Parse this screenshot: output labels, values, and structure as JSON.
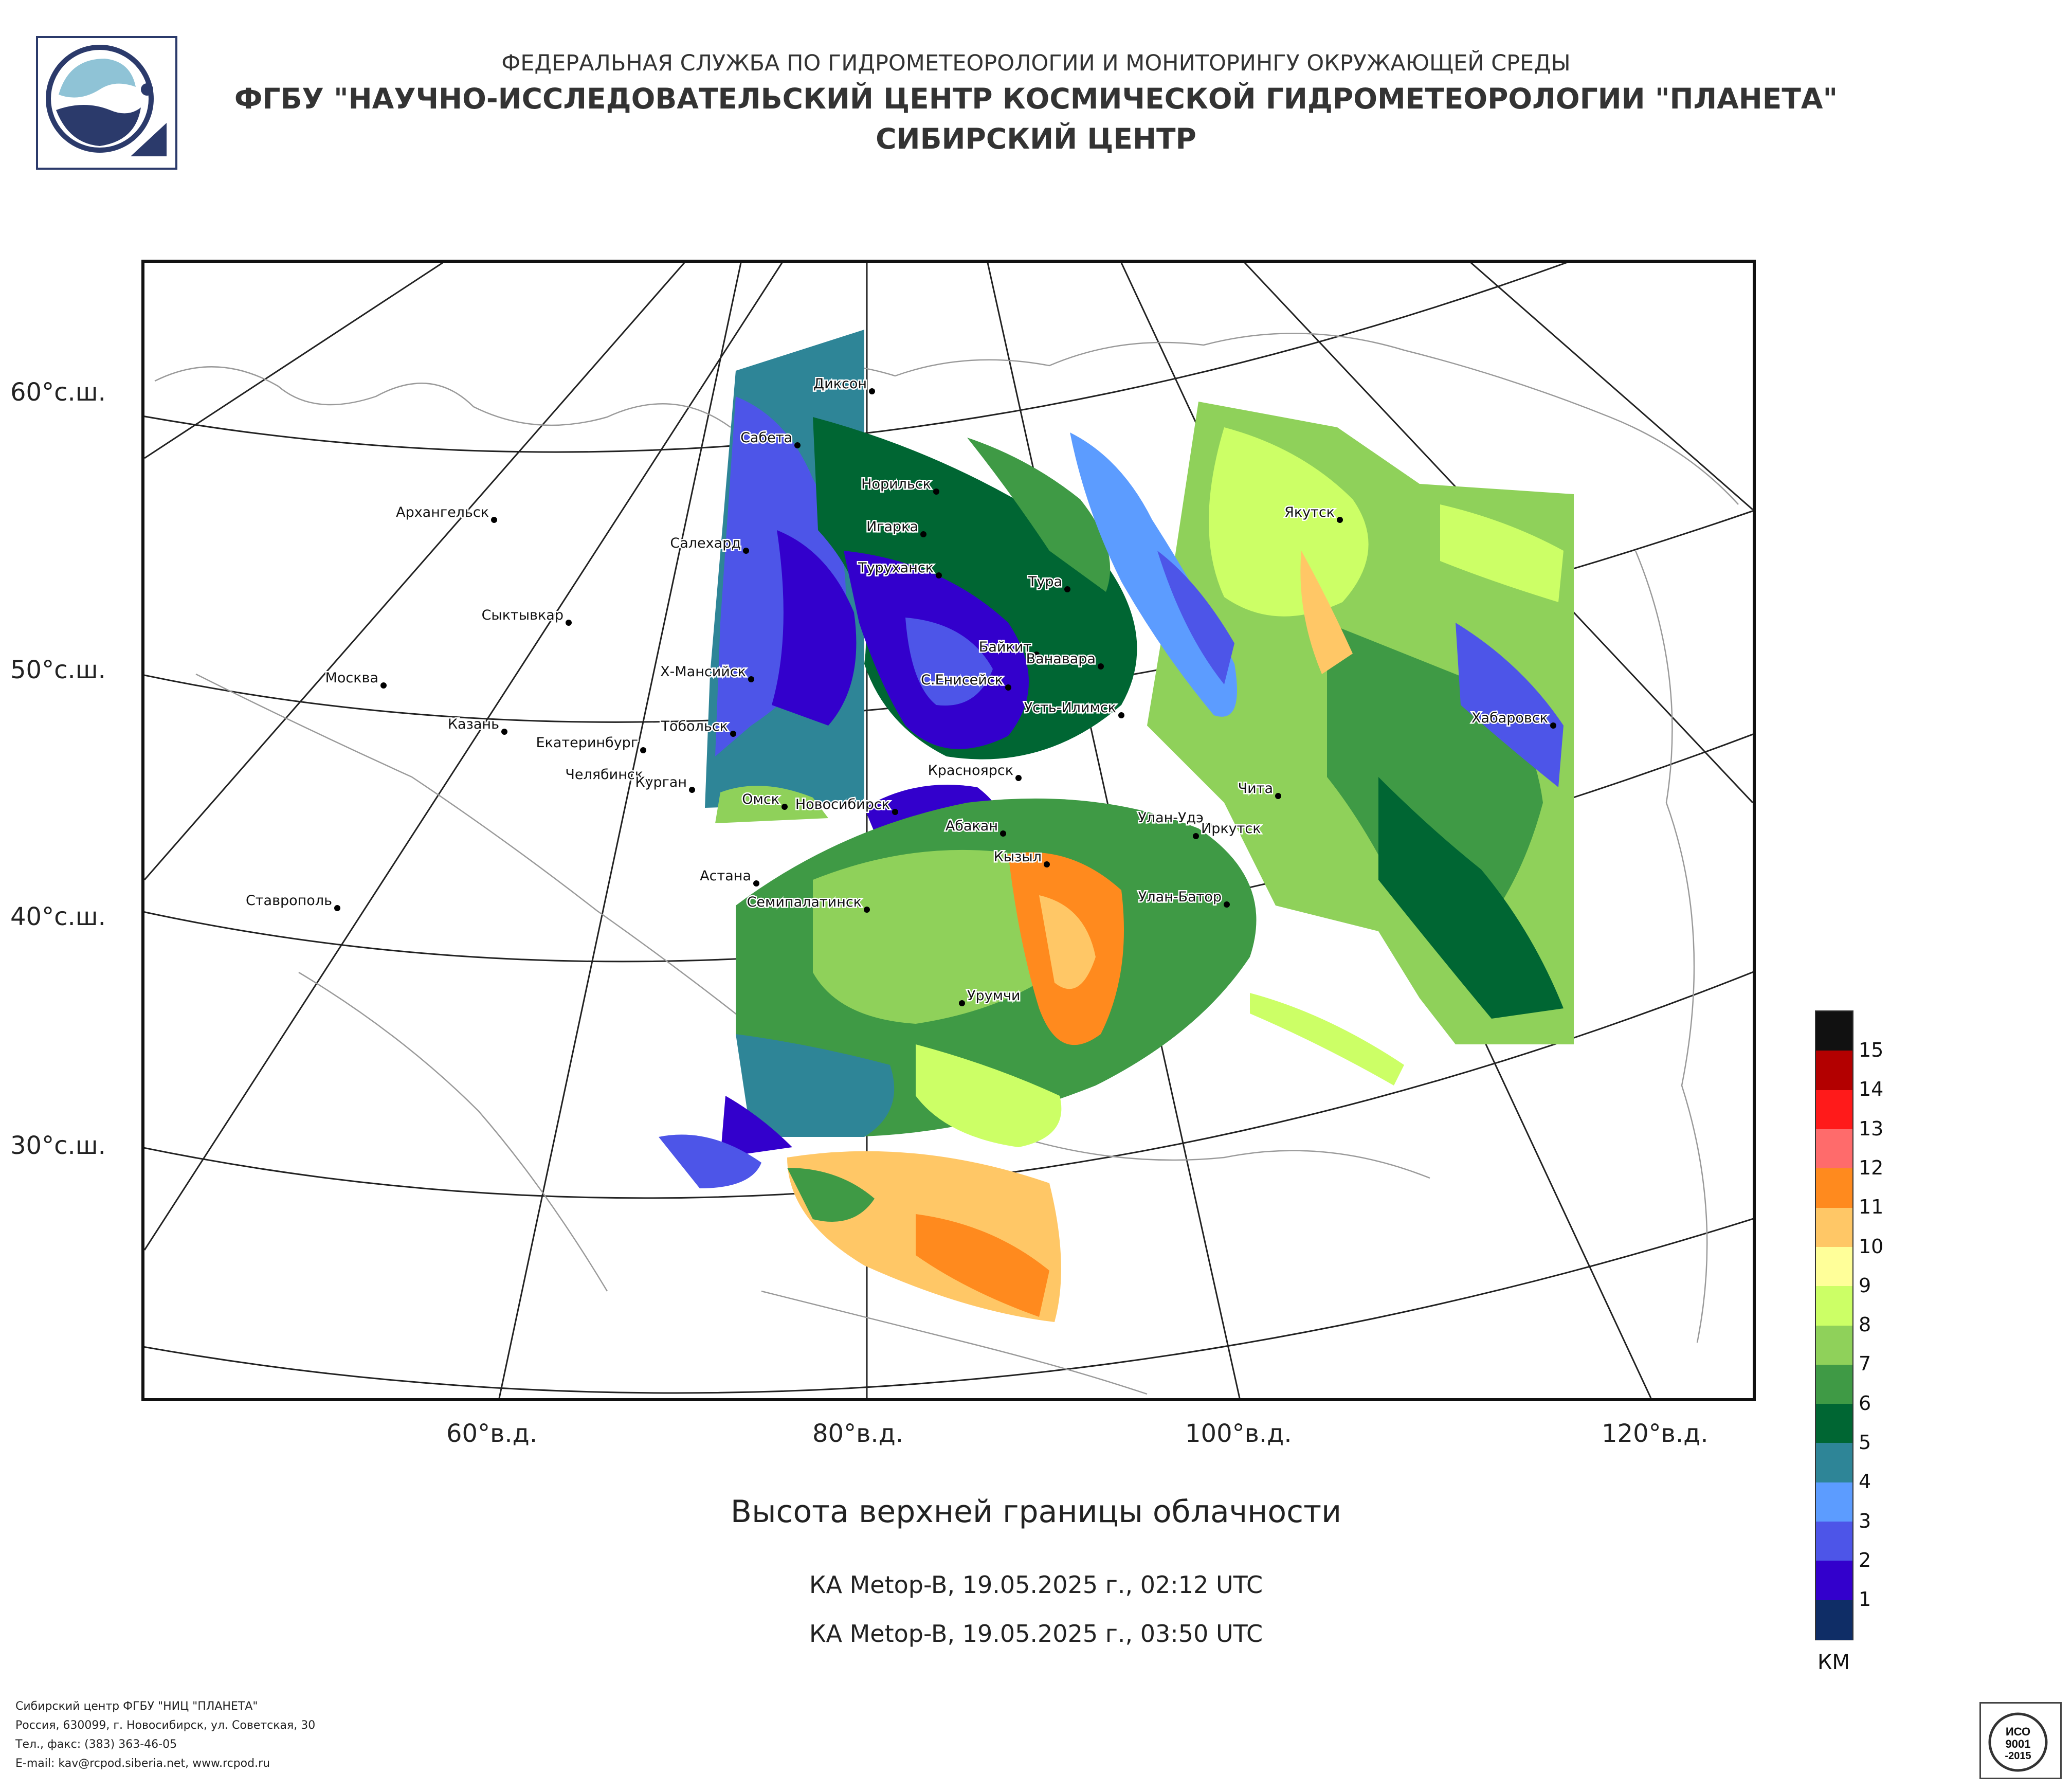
{
  "header": {
    "line1": "ФЕДЕРАЛЬНАЯ СЛУЖБА ПО ГИДРОМЕТЕОРОЛОГИИ И МОНИТОРИНГУ ОКРУЖАЮЩЕЙ СРЕДЫ",
    "line2": "ФГБУ \"НАУЧНО-ИССЛЕДОВАТЕЛЬСКИЙ ЦЕНТР КОСМИЧЕСКОЙ ГИДРОМЕТЕОРОЛОГИИ \"ПЛАНЕТА\"",
    "line3": "СИБИРСКИЙ ЦЕНТР"
  },
  "map": {
    "lat_labels": [
      "60°с.ш.",
      "50°с.ш.",
      "40°с.ш.",
      "30°с.ш."
    ],
    "lon_labels": [
      "60°в.д.",
      "80°в.д.",
      "100°в.д.",
      "120°в.д."
    ],
    "cities": [
      "Диксон",
      "Сабета",
      "Норильск",
      "Архангельск",
      "Игарка",
      "Салехард",
      "Якутск",
      "Туруханск",
      "Тура",
      "Сыктывкар",
      "Байкит",
      "Ванавара",
      "Х-Мансийск",
      "Москва",
      "С.Енисейск",
      "Усть-Илимск",
      "Хабаровск",
      "Казань",
      "Тобольск",
      "Екатеринбург",
      "Челябинск",
      "Курган",
      "Красноярск",
      "Чита",
      "Омск",
      "Новосибирск",
      "Абакан",
      "Улан-Удэ",
      "Иркутск",
      "Кызыл",
      "Астана",
      "Ставрополь",
      "Улан-Батор",
      "Семипалатинск",
      "Урумчи"
    ]
  },
  "title": "Высота верхней границы облачности",
  "subtitles": [
    "КА Metop-B, 19.05.2025 г., 02:12 UTC",
    "КА Metop-B, 19.05.2025 г., 03:50 UTC"
  ],
  "legend": {
    "unit": "КМ",
    "items": [
      {
        "label": "15",
        "color": "#111111"
      },
      {
        "label": "14",
        "color": "#b30000"
      },
      {
        "label": "13",
        "color": "#ff1a1a"
      },
      {
        "label": "12",
        "color": "#ff6b6b"
      },
      {
        "label": "11",
        "color": "#ff8a1e"
      },
      {
        "label": "10",
        "color": "#ffc766"
      },
      {
        "label": "9",
        "color": "#ffff99"
      },
      {
        "label": "8",
        "color": "#ccff66"
      },
      {
        "label": "7",
        "color": "#8fd15a"
      },
      {
        "label": "6",
        "color": "#3f9a45"
      },
      {
        "label": "5",
        "color": "#006633"
      },
      {
        "label": "4",
        "color": "#2e8597"
      },
      {
        "label": "3",
        "color": "#5c9cff"
      },
      {
        "label": "2",
        "color": "#4d55e8"
      },
      {
        "label": "1",
        "color": "#3300cc"
      },
      {
        "label": "",
        "color": "#0f2d66"
      }
    ]
  },
  "footer": {
    "line1": "Сибирский центр ФГБУ \"НИЦ \"ПЛАНЕТА\"",
    "line2": "Россия, 630099, г. Новосибирск, ул. Советская, 30",
    "line3": "Тел., факс: (383) 363-46-05",
    "line4": "E-mail: kav@rcpod.siberia.net, www.rcpod.ru"
  },
  "cert": {
    "line1": "ИСО",
    "line2": "9001",
    "line3": "-2015"
  }
}
